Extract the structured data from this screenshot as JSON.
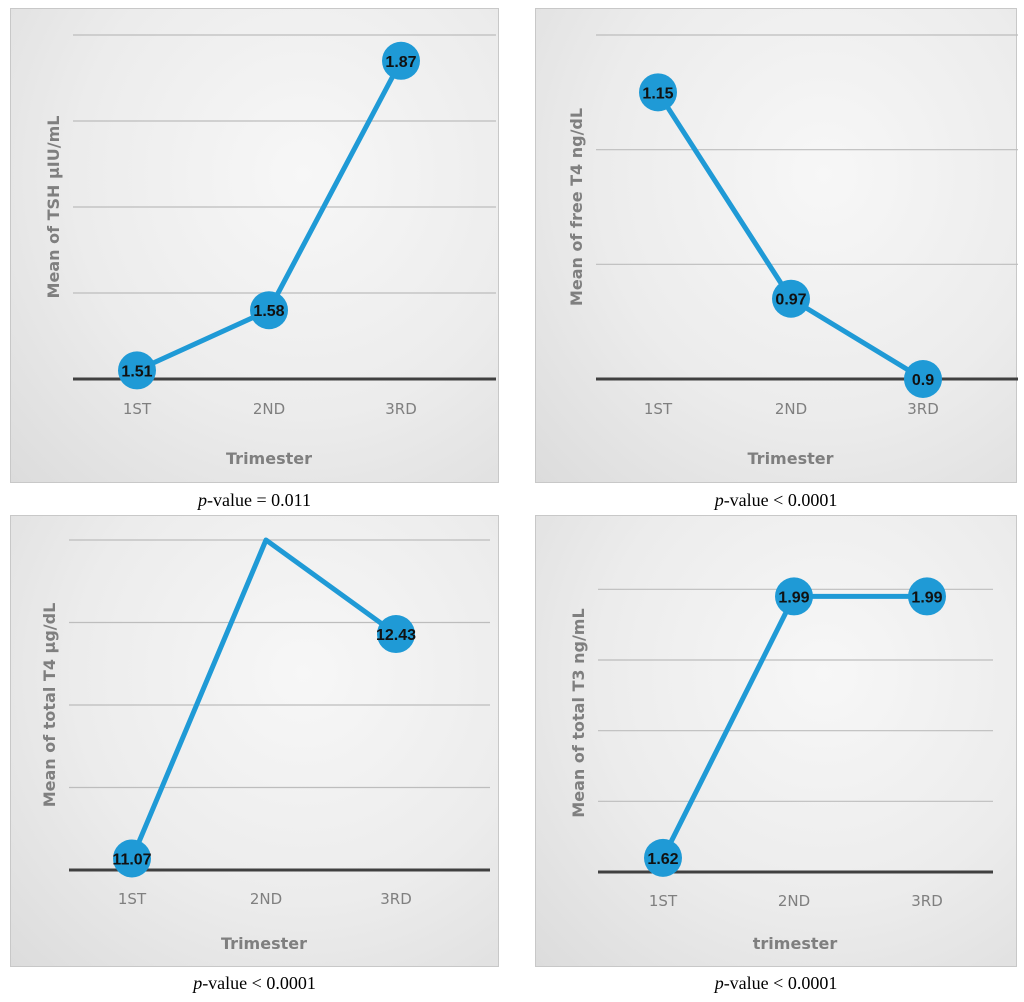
{
  "chart_data": [
    {
      "type": "line",
      "categories": [
        "1ST",
        "2ND",
        "3RD"
      ],
      "values": [
        1.51,
        1.58,
        1.87
      ],
      "data_labels": [
        "1.51",
        "1.58",
        "1.87"
      ],
      "xlabel": "Trimester",
      "ylabel": "Mean of TSH µIU/mL",
      "ylim": [
        1.5,
        1.9
      ],
      "grid_step": 0.1,
      "caption_prefix": "p",
      "caption_rest": "-value = 0.011",
      "line_color": "#1f9ad6"
    },
    {
      "type": "line",
      "categories": [
        "1ST",
        "2ND",
        "3RD"
      ],
      "values": [
        1.15,
        0.97,
        0.9
      ],
      "data_labels": [
        "1.15",
        "0.97",
        "0.9"
      ],
      "xlabel": "Trimester",
      "ylabel": "Mean of free T4 ng/dL",
      "ylim": [
        0.9,
        1.2
      ],
      "grid_step": 0.1,
      "caption_prefix": "p",
      "caption_rest": "-value < 0.0001",
      "line_color": "#1f9ad6"
    },
    {
      "type": "line",
      "categories": [
        "1ST",
        "2ND",
        "3RD"
      ],
      "values": [
        11.07,
        13.0,
        12.43
      ],
      "data_labels": [
        "11.07",
        "",
        "12.43"
      ],
      "xlabel": "Trimester",
      "ylabel": "Mean of total T4 µg/dL",
      "ylim": [
        11.0,
        13.0
      ],
      "grid_step": 0.5,
      "caption_prefix": "p",
      "caption_rest": "-value < 0.0001",
      "line_color": "#1f9ad6"
    },
    {
      "type": "line",
      "categories": [
        "1ST",
        "2ND",
        "3RD"
      ],
      "values": [
        1.62,
        1.99,
        1.99
      ],
      "data_labels": [
        "1.62",
        "1.99",
        "1.99"
      ],
      "xlabel": "trimester",
      "ylabel": "Mean of total T3 ng/mL",
      "ylim": [
        1.6,
        2.05
      ],
      "grid_step": 0.1,
      "caption_prefix": "p",
      "caption_rest": "-value < 0.0001",
      "line_color": "#1f9ad6"
    }
  ]
}
